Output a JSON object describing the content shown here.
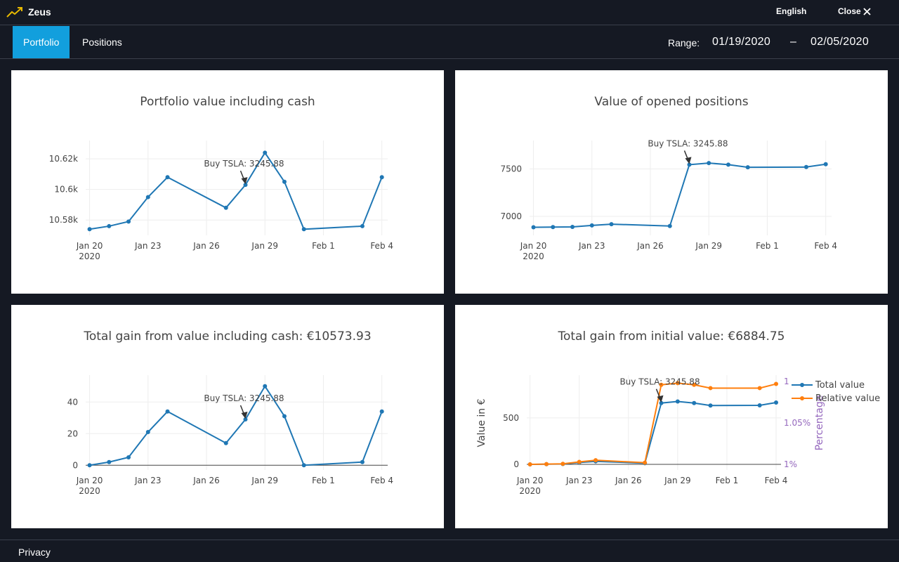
{
  "header": {
    "brand": "Zeus",
    "language": "English",
    "close_label": "Close"
  },
  "nav": {
    "tabs": [
      {
        "label": "Portfolio",
        "active": true
      },
      {
        "label": "Positions",
        "active": false
      }
    ],
    "range_label": "Range:",
    "range_start": "01/19/2020",
    "range_sep": "–",
    "range_end": "02/05/2020"
  },
  "footer": {
    "privacy": "Privacy"
  },
  "colors": {
    "line_blue": "#1f77b4",
    "line_orange": "#ff7f0e",
    "accent": "#129fdd",
    "purple": "#9467bd"
  },
  "chart_data": [
    {
      "type": "line",
      "title": "Portfolio value including cash",
      "x": [
        "2020-01-20",
        "2020-01-21",
        "2020-01-22",
        "2020-01-23",
        "2020-01-24",
        "2020-01-27",
        "2020-01-28",
        "2020-01-29",
        "2020-01-30",
        "2020-01-31",
        "2020-02-03",
        "2020-02-04"
      ],
      "values": [
        10574,
        10576,
        10579,
        10595,
        10608,
        10588,
        10603,
        10624,
        10605,
        10574,
        10576,
        10608
      ],
      "ylim": [
        10570,
        10632
      ],
      "yticks": [
        "10.58k",
        "10.6k",
        "10.62k"
      ],
      "xticks": [
        "Jan 20",
        "Jan 23",
        "Jan 26",
        "Jan 29",
        "Feb 1",
        "Feb 4"
      ],
      "xtick_year": "2020",
      "annotation": "Buy TSLA: 3245.88"
    },
    {
      "type": "line",
      "title": "Value of opened positions",
      "x": [
        "2020-01-20",
        "2020-01-21",
        "2020-01-22",
        "2020-01-23",
        "2020-01-24",
        "2020-01-27",
        "2020-01-28",
        "2020-01-29",
        "2020-01-30",
        "2020-01-31",
        "2020-02-03",
        "2020-02-04"
      ],
      "values": [
        6885,
        6887,
        6889,
        6905,
        6918,
        6898,
        7545,
        7562,
        7545,
        7518,
        7520,
        7550
      ],
      "ylim": [
        6800,
        7800
      ],
      "yticks": [
        "7000",
        "7500"
      ],
      "xticks": [
        "Jan 20",
        "Jan 23",
        "Jan 26",
        "Jan 29",
        "Feb 1",
        "Feb 4"
      ],
      "xtick_year": "2020",
      "annotation": "Buy TSLA: 3245.88"
    },
    {
      "type": "line",
      "title": "Total gain from value including cash: €10573.93",
      "x": [
        "2020-01-20",
        "2020-01-21",
        "2020-01-22",
        "2020-01-23",
        "2020-01-24",
        "2020-01-27",
        "2020-01-28",
        "2020-01-29",
        "2020-01-30",
        "2020-01-31",
        "2020-02-03",
        "2020-02-04"
      ],
      "values": [
        0,
        2,
        5,
        21,
        34,
        14,
        29,
        50,
        31,
        0,
        2,
        34
      ],
      "ylim": [
        -3,
        57
      ],
      "yticks": [
        "0",
        "20",
        "40"
      ],
      "xticks": [
        "Jan 20",
        "Jan 23",
        "Jan 26",
        "Jan 29",
        "Feb 1",
        "Feb 4"
      ],
      "xtick_year": "2020",
      "annotation": "Buy TSLA: 3245.88"
    },
    {
      "type": "line",
      "title": "Total gain from initial value: €6884.75",
      "ylabel": "Value in €",
      "y2label": "Percentage",
      "x": [
        "2020-01-20",
        "2020-01-21",
        "2020-01-22",
        "2020-01-23",
        "2020-01-24",
        "2020-01-27",
        "2020-01-28",
        "2020-01-29",
        "2020-01-30",
        "2020-01-31",
        "2020-02-03",
        "2020-02-04"
      ],
      "series": [
        {
          "name": "Total value",
          "values": [
            0,
            2,
            4,
            20,
            33,
            13,
            660,
            677,
            660,
            633,
            635,
            665
          ]
        },
        {
          "name": "Relative value",
          "values": [
            1.0,
            1.0003,
            1.0006,
            1.003,
            1.005,
            1.002,
            1.096,
            1.098,
            1.096,
            1.092,
            1.092,
            1.097
          ]
        }
      ],
      "ylim": [
        -60,
        960
      ],
      "yticks": [
        "0",
        "500"
      ],
      "y2ticks": [
        "1%",
        "1.05%",
        "1"
      ],
      "xticks": [
        "Jan 20",
        "Jan 23",
        "Jan 26",
        "Jan 29",
        "Feb 1",
        "Feb 4"
      ],
      "xtick_year": "2020",
      "annotation": "Buy TSLA: 3245.88"
    }
  ]
}
